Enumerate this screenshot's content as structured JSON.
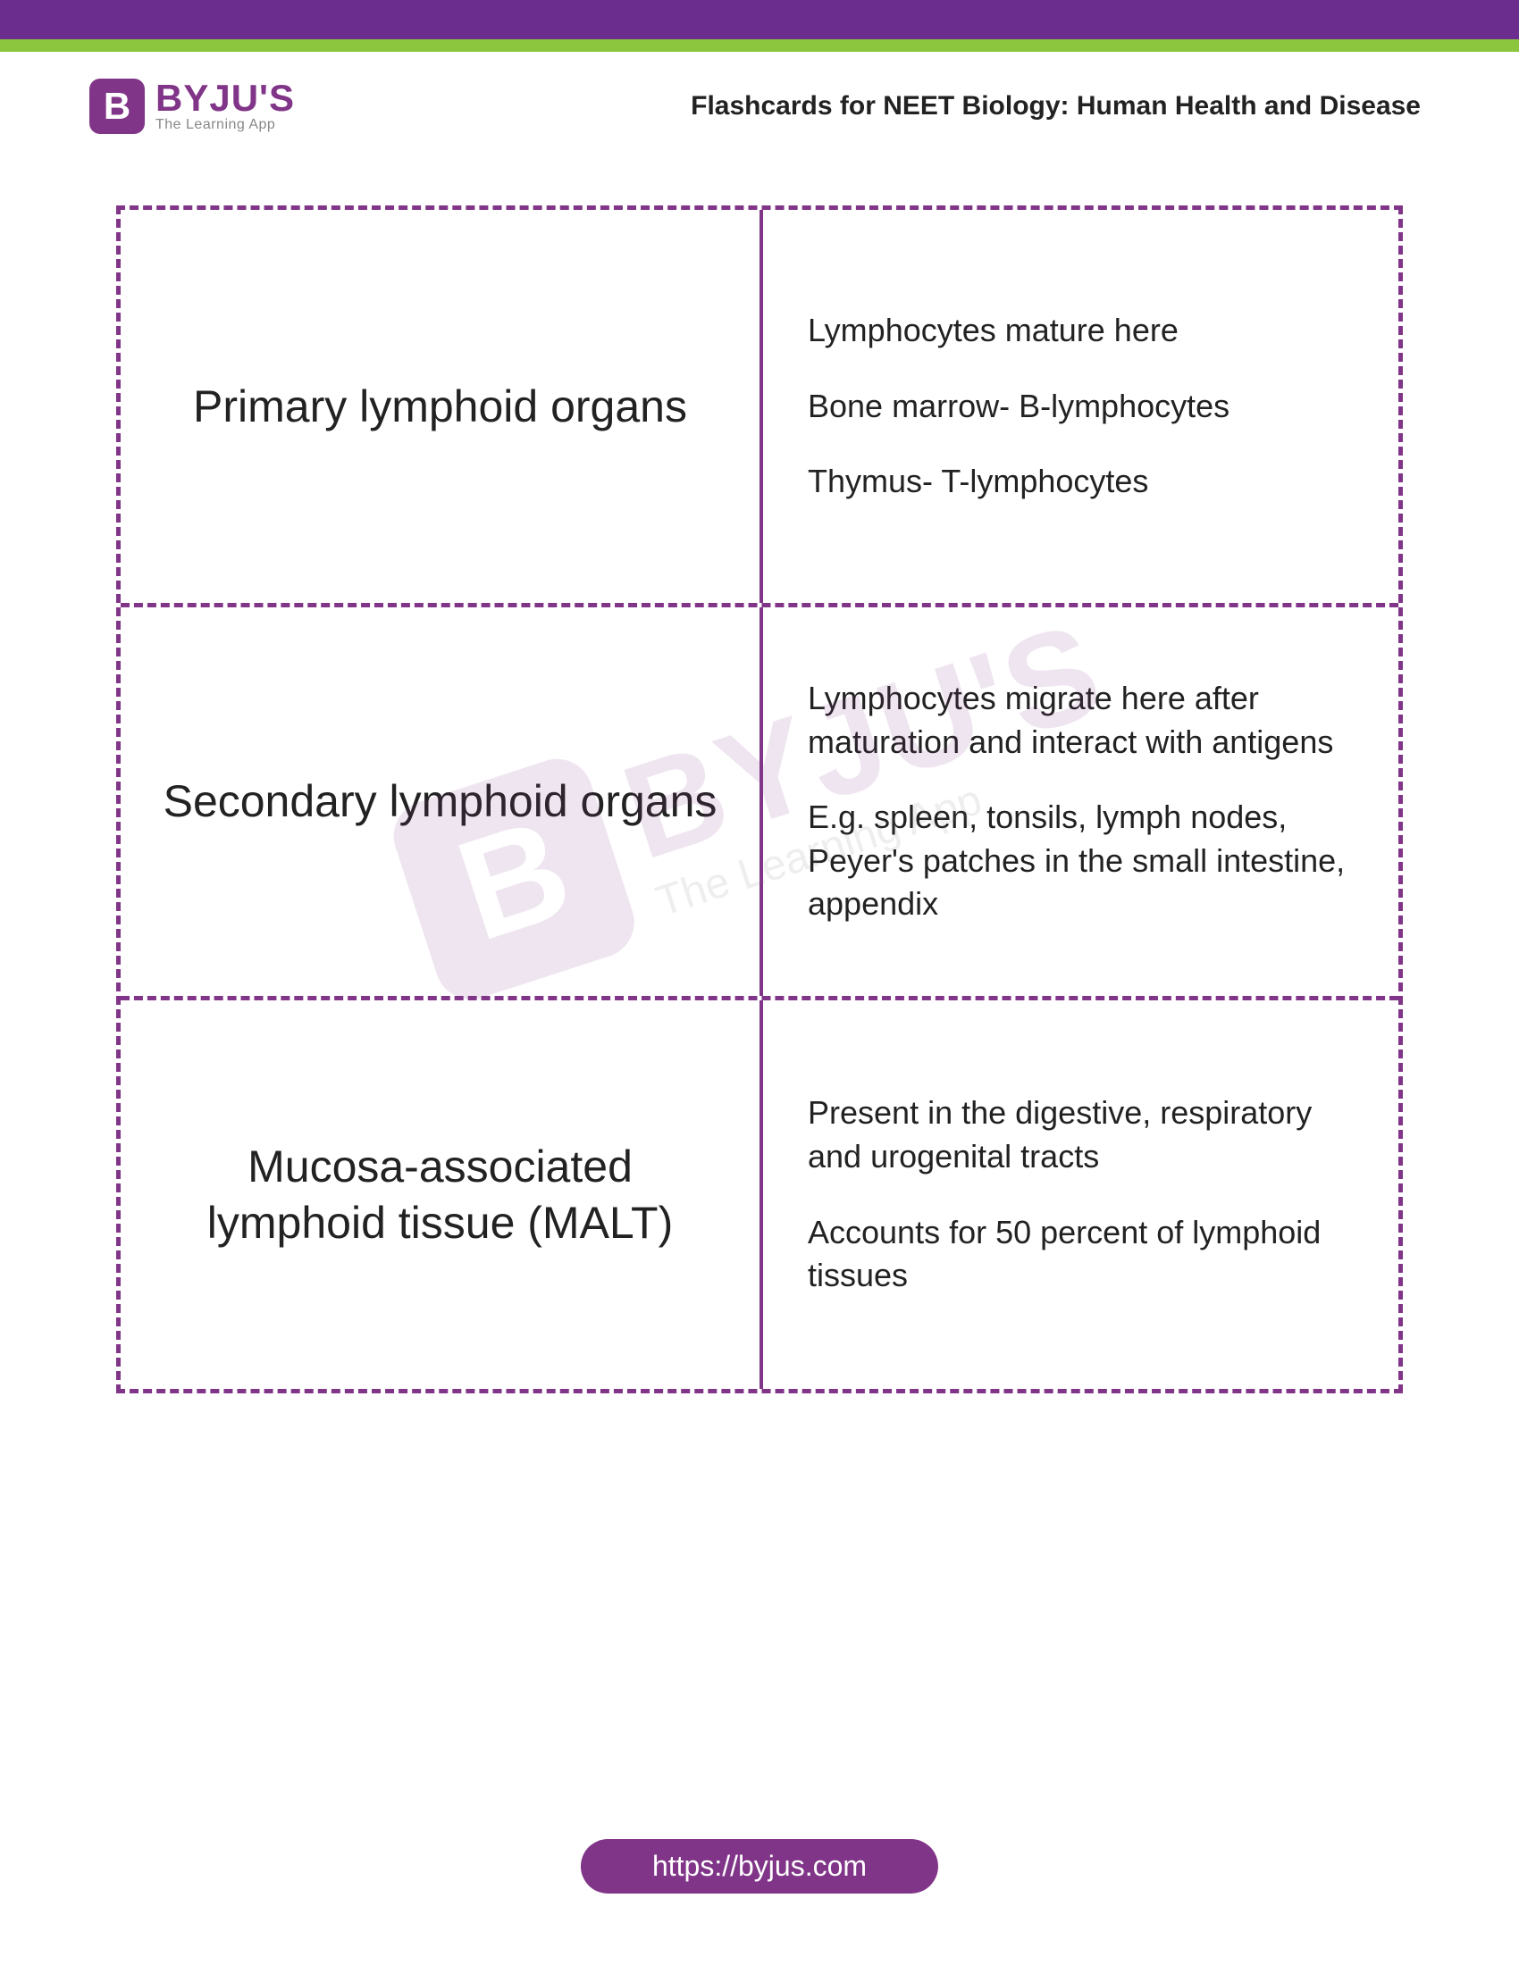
{
  "brand": {
    "badge_letter": "B",
    "name": "BYJU'S",
    "tagline": "The Learning App"
  },
  "header": {
    "title": "Flashcards for NEET Biology: Human Health and Disease"
  },
  "cards": [
    {
      "term": "Primary lymphoid organs",
      "points": [
        "Lymphocytes mature here",
        "Bone marrow- B-lymphocytes",
        "Thymus- T-lymphocytes"
      ]
    },
    {
      "term": "Secondary lymphoid organs",
      "points": [
        "Lymphocytes migrate here after maturation and interact with antigens",
        "E.g. spleen, tonsils, lymph nodes, Peyer's patches in the small intestine, appendix"
      ]
    },
    {
      "term": "Mucosa-associated lymphoid tissue (MALT)",
      "points": [
        "Present in the digestive, respiratory and urogenital tracts",
        "Accounts for 50 percent of lymphoid tissues"
      ]
    }
  ],
  "footer": {
    "url": "https://byjus.com"
  },
  "colors": {
    "brand_purple": "#813588",
    "banner_purple": "#6b2e8f",
    "accent_green": "#8cc63f",
    "text": "#222222"
  }
}
